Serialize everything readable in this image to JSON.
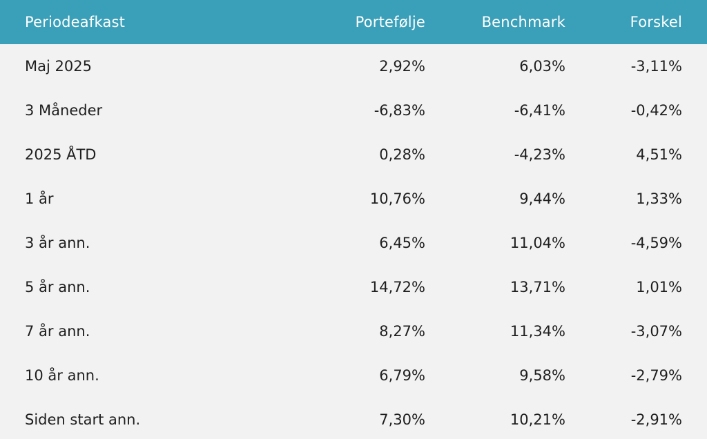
{
  "table": {
    "headers": [
      "Periodeafkast",
      "Portefølje",
      "Benchmark",
      "Forskel"
    ],
    "rows": [
      [
        "Maj 2025",
        "2,92%",
        "6,03%",
        "-3,11%"
      ],
      [
        "3 Måneder",
        "-6,83%",
        "-6,41%",
        "-0,42%"
      ],
      [
        "2025 ÅTD",
        "0,28%",
        "-4,23%",
        "4,51%"
      ],
      [
        "1 år",
        "10,76%",
        "9,44%",
        "1,33%"
      ],
      [
        "3 år ann.",
        "6,45%",
        "11,04%",
        "-4,59%"
      ],
      [
        "5 år ann.",
        "14,72%",
        "13,71%",
        "1,01%"
      ],
      [
        "7 år ann.",
        "8,27%",
        "11,34%",
        "-3,07%"
      ],
      [
        "10 år ann.",
        "6,79%",
        "9,58%",
        "-2,79%"
      ],
      [
        "Siden start ann.",
        "7,30%",
        "10,21%",
        "-2,91%"
      ]
    ]
  },
  "colors": {
    "header_bg": "#3a9fb8",
    "header_text": "#ffffff",
    "body_bg": "#f2f2f2",
    "body_text": "#1e1e1e"
  }
}
